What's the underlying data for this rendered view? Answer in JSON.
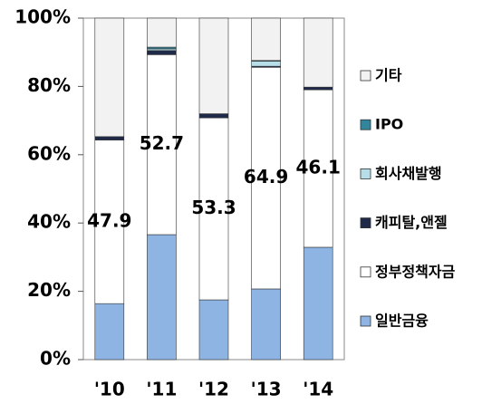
{
  "chart_data": {
    "type": "stacked_bar_100",
    "categories": [
      "'10",
      "'11",
      "'12",
      "'13",
      "'14"
    ],
    "series": [
      {
        "name": "일반금융",
        "color": "#8db4e2",
        "values": [
          16.4,
          36.6,
          17.5,
          20.7,
          32.9
        ]
      },
      {
        "name": "정부정책자금",
        "color": "#ffffff",
        "values": [
          47.9,
          52.7,
          53.3,
          64.9,
          46.1
        ],
        "show_labels": true
      },
      {
        "name": "캐피탈,앤젤",
        "color": "#1f2a4a",
        "values": [
          1.0,
          1.2,
          1.2,
          0.3,
          0.8
        ]
      },
      {
        "name": "회사채발행",
        "color": "#b7dee8",
        "values": [
          0,
          0.5,
          0,
          1.5,
          0
        ]
      },
      {
        "name": "IPO",
        "color": "#31859c",
        "values": [
          0,
          0.5,
          0,
          0.2,
          0
        ]
      },
      {
        "name": "기타",
        "color": "#f2f2f2",
        "values": [
          34.7,
          8.5,
          28.0,
          12.4,
          20.2
        ]
      }
    ],
    "ylim": [
      0,
      100
    ],
    "yticks": [
      {
        "value": 0,
        "label": "0%"
      },
      {
        "value": 20,
        "label": "20%"
      },
      {
        "value": 40,
        "label": "40%"
      },
      {
        "value": 60,
        "label": "60%"
      },
      {
        "value": 80,
        "label": "80%"
      },
      {
        "value": 100,
        "label": "100%"
      }
    ],
    "legend": "right"
  }
}
